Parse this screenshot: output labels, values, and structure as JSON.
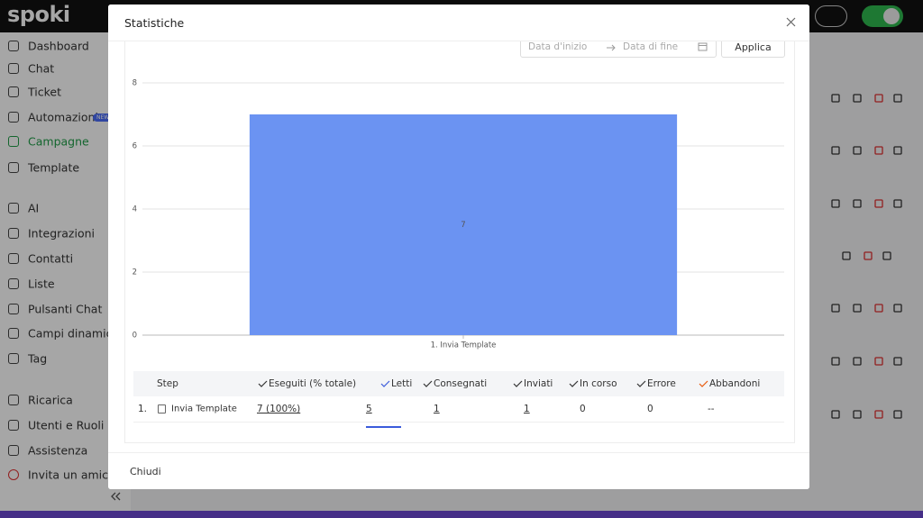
{
  "app": {
    "logo": "spoki",
    "sidebar": {
      "items": [
        "Dashboard",
        "Chat",
        "Ticket",
        "Automazioni",
        "Campagne",
        "Template",
        "AI",
        "Integrazioni",
        "Contatti",
        "Liste",
        "Pulsanti Chat",
        "Campi dinamici",
        "Tag",
        "Ricarica",
        "Utenti e Ruoli",
        "Assistenza",
        "Invita un amico"
      ],
      "badge": "NEW"
    }
  },
  "modal": {
    "title": "Statistiche",
    "filters": {
      "start_placeholder": "Data d'inizio",
      "end_placeholder": "Data di fine",
      "apply": "Applica"
    },
    "footer": {
      "close": "Chiudi"
    }
  },
  "chart_data": {
    "type": "bar",
    "categories": [
      "1. Invia Template"
    ],
    "values": [
      7
    ],
    "color": "#6b93f2",
    "ylim": [
      0,
      8
    ],
    "yticks": [
      0,
      2,
      4,
      6,
      8
    ],
    "grid": true
  },
  "table": {
    "headers": [
      "Step",
      "Eseguiti (% totale)",
      "Letti",
      "Consegnati",
      "Inviati",
      "In corso",
      "Errore",
      "Abbandoni"
    ],
    "rows": [
      {
        "index": "1.",
        "cells": [
          "Invia Template",
          "7 (100%)",
          "5",
          "1",
          "1",
          "0",
          "0",
          "--"
        ]
      }
    ]
  }
}
